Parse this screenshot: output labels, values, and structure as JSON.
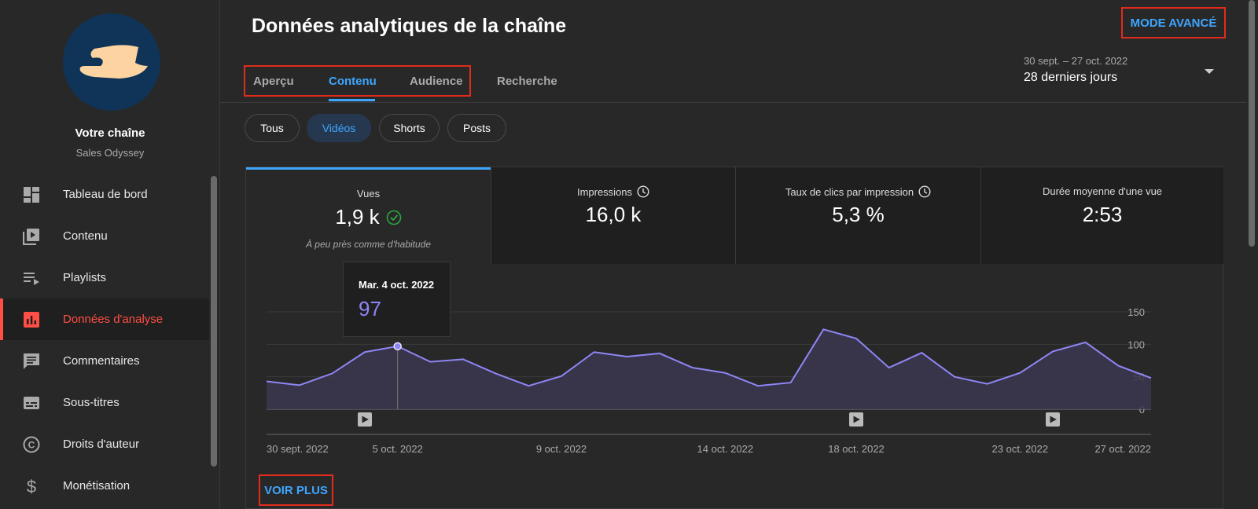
{
  "sidebar": {
    "channel_title": "Votre chaîne",
    "channel_name": "Sales Odyssey",
    "items": [
      {
        "label": "Tableau de bord",
        "icon": "dashboard-icon"
      },
      {
        "label": "Contenu",
        "icon": "video-library-icon"
      },
      {
        "label": "Playlists",
        "icon": "playlist-icon"
      },
      {
        "label": "Données d'analyse",
        "icon": "analytics-icon",
        "active": true
      },
      {
        "label": "Commentaires",
        "icon": "comment-icon"
      },
      {
        "label": "Sous-titres",
        "icon": "subtitles-icon"
      },
      {
        "label": "Droits d'auteur",
        "icon": "copyright-icon"
      },
      {
        "label": "Monétisation",
        "icon": "dollar-icon"
      }
    ]
  },
  "header": {
    "title": "Données analytiques de la chaîne",
    "advanced_mode": "MODE AVANCÉ",
    "tabs": [
      {
        "label": "Aperçu"
      },
      {
        "label": "Contenu",
        "active": true
      },
      {
        "label": "Audience"
      },
      {
        "label": "Recherche"
      }
    ],
    "date_range": "30 sept. – 27 oct. 2022",
    "date_label": "28 derniers jours"
  },
  "filters": {
    "chips": [
      {
        "label": "Tous"
      },
      {
        "label": "Vidéos",
        "active": true
      },
      {
        "label": "Shorts"
      },
      {
        "label": "Posts"
      }
    ]
  },
  "metrics": [
    {
      "label": "Vues",
      "value": "1,9 k",
      "note": "À peu près comme d'habitude",
      "active": true,
      "check": true
    },
    {
      "label": "Impressions",
      "value": "16,0 k",
      "clock": true
    },
    {
      "label": "Taux de clics par impression",
      "value": "5,3 %",
      "clock": true
    },
    {
      "label": "Durée moyenne d'une vue",
      "value": "2:53"
    }
  ],
  "tooltip": {
    "date": "Mar. 4 oct. 2022",
    "value": "97"
  },
  "chart_data": {
    "type": "area",
    "title": "",
    "xlabel": "",
    "ylabel": "",
    "y_ticks": [
      "150",
      "100",
      "50",
      "0"
    ],
    "ylim": [
      0,
      150
    ],
    "x_tick_labels": [
      "30 sept. 2022",
      "5 oct. 2022",
      "9 oct. 2022",
      "14 oct. 2022",
      "18 oct. 2022",
      "23 oct. 2022",
      "27 oct. 2022"
    ],
    "x_tick_days": [
      0,
      4,
      9,
      14,
      18,
      23,
      27
    ],
    "values": [
      43,
      37,
      55,
      88,
      97,
      73,
      77,
      55,
      36,
      51,
      88,
      81,
      86,
      64,
      56,
      36,
      41,
      123,
      109,
      64,
      87,
      50,
      39,
      56,
      89,
      103,
      67,
      48
    ],
    "highlight_day": 4,
    "video_marker_days": [
      3,
      18,
      24
    ],
    "line_color": "#8e86f5",
    "fill_color": "#3b3750"
  },
  "footer": {
    "see_more": "VOIR PLUS"
  }
}
